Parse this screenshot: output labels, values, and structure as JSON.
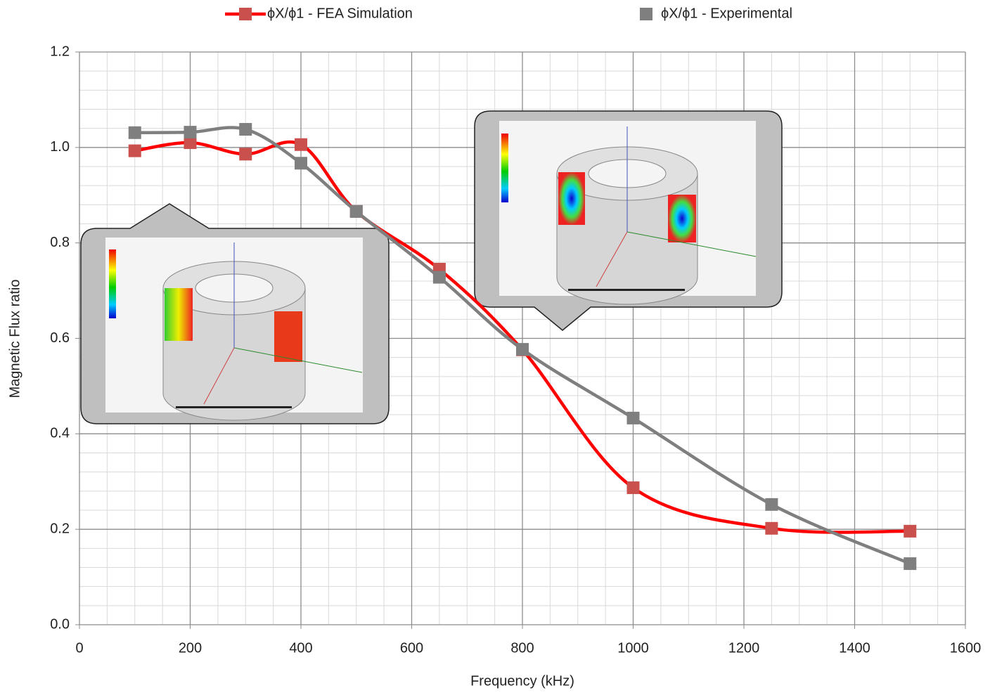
{
  "chart_data": {
    "type": "line",
    "xlabel": "Frequency (kHz)",
    "ylabel": "Magnetic Flux ratio",
    "xlim": [
      0,
      1600
    ],
    "xticks": [
      0,
      200,
      400,
      600,
      800,
      1000,
      1200,
      1400,
      1600
    ],
    "ylim": [
      0,
      1.2
    ],
    "yticks": [
      {
        "value": 0,
        "label": "0.0"
      },
      0.2,
      0.4,
      0.6,
      0.8,
      {
        "value": 1,
        "label": "1.0"
      },
      1.2
    ],
    "xminorticks": [
      50,
      100,
      150,
      250,
      300,
      350,
      450,
      500,
      550,
      650,
      700,
      750,
      850,
      900,
      950,
      1050,
      1100,
      1150,
      1250,
      1300,
      1350,
      1450,
      1500,
      1550
    ],
    "yminorticks": [
      0.04,
      0.08,
      0.12,
      0.16,
      0.24,
      0.28,
      0.32,
      0.36,
      0.44,
      0.48,
      0.52,
      0.56,
      0.64,
      0.68,
      0.72,
      0.76,
      0.84,
      0.88,
      0.92,
      0.96,
      1.04,
      1.08,
      1.12,
      1.16
    ],
    "grid": true,
    "smooth": true,
    "legend": "top",
    "x": [
      100,
      200,
      300,
      400,
      500,
      650,
      800,
      1000,
      1250,
      1500
    ],
    "series": [
      {
        "name": "ϕX/ϕ1 - FEA Simulation",
        "color": "#ff0000",
        "marker_color": "#c9504c",
        "values": [
          0.993,
          1.01,
          0.986,
          1.006,
          0.866,
          0.745,
          0.576,
          0.287,
          0.202,
          0.196
        ]
      },
      {
        "name": "ϕX/ϕ1 - Experimental",
        "color": "#7f7f7f",
        "marker_color": "#7f7f7f",
        "values": [
          1.031,
          1.032,
          1.038,
          0.967,
          0.866,
          0.728,
          0.577,
          0.433,
          0.252,
          0.128
        ]
      }
    ]
  }
}
